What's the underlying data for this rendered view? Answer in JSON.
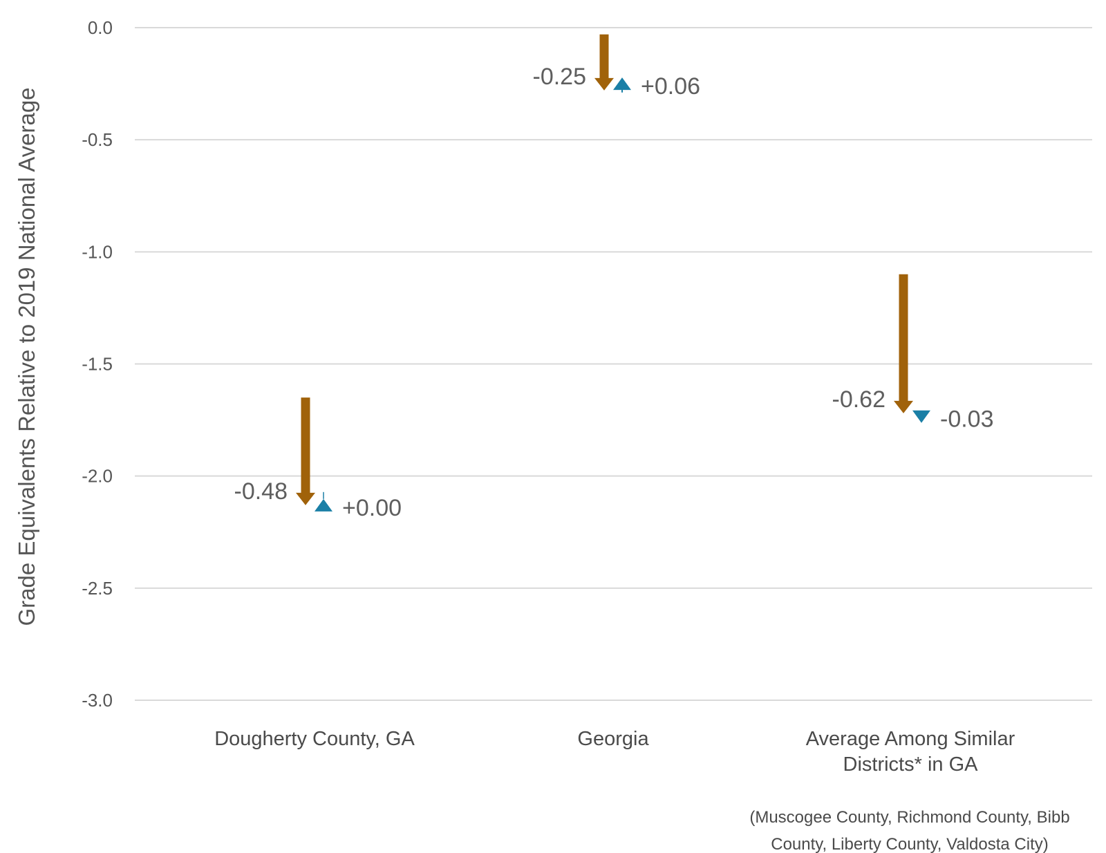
{
  "chart_data": {
    "type": "arrow",
    "ylabel": "Grade Equivalents Relative to 2019 National Average",
    "xlabel": "",
    "ylim": [
      -3.0,
      0.0
    ],
    "yticks": [
      "0.0",
      "-0.5",
      "-1.0",
      "-1.5",
      "-2.0",
      "-2.5",
      "-3.0"
    ],
    "grid": true,
    "categories": [
      {
        "lines": [
          "Dougherty County, GA"
        ],
        "note": []
      },
      {
        "lines": [
          "Georgia"
        ],
        "note": []
      },
      {
        "lines": [
          "Average Among Similar",
          "Districts* in GA"
        ],
        "note": [
          "(Muscogee County, Richmond County, Bibb",
          "County, Liberty County, Valdosta City)"
        ]
      }
    ],
    "series": [
      {
        "start": [
          -1.65,
          -0.03,
          -1.1
        ],
        "end": [
          -2.13,
          -0.28,
          -1.72
        ],
        "change_labels": [
          "-0.48",
          "-0.25",
          "-0.62"
        ],
        "color": "#A0620A"
      },
      {
        "start": [
          -2.13,
          -0.28,
          -1.72
        ],
        "end": [
          -2.13,
          -0.22,
          -1.75
        ],
        "change_labels": [
          "+0.00",
          "+0.06",
          "-0.03"
        ],
        "color": "#1A7FA6"
      }
    ]
  }
}
